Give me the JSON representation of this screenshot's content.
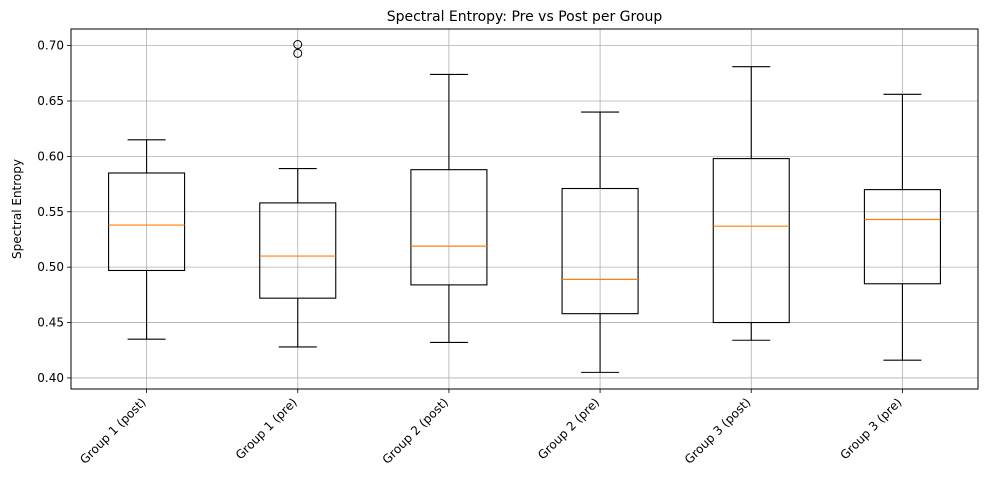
{
  "chart_data": {
    "type": "box",
    "title": "Spectral Entropy: Pre vs Post per Group",
    "xlabel": "",
    "ylabel": "Spectral Entropy",
    "ylim": [
      0.39,
      0.715
    ],
    "yticks": [
      0.4,
      0.45,
      0.5,
      0.55,
      0.6,
      0.65,
      0.7
    ],
    "ytick_labels": [
      "0.40",
      "0.45",
      "0.50",
      "0.55",
      "0.60",
      "0.65",
      "0.70"
    ],
    "grid": true,
    "median_color": "#ff7f0e",
    "box_color": "#000000",
    "categories": [
      "Group 1 (post)",
      "Group 1 (pre)",
      "Group 2 (post)",
      "Group 2 (pre)",
      "Group 3 (post)",
      "Group 3 (pre)"
    ],
    "boxes": [
      {
        "whisker_low": 0.435,
        "q1": 0.497,
        "median": 0.538,
        "q3": 0.585,
        "whisker_high": 0.615,
        "outliers": []
      },
      {
        "whisker_low": 0.428,
        "q1": 0.472,
        "median": 0.51,
        "q3": 0.558,
        "whisker_high": 0.589,
        "outliers": [
          0.693,
          0.701
        ]
      },
      {
        "whisker_low": 0.432,
        "q1": 0.484,
        "median": 0.519,
        "q3": 0.588,
        "whisker_high": 0.674,
        "outliers": []
      },
      {
        "whisker_low": 0.405,
        "q1": 0.458,
        "median": 0.489,
        "q3": 0.571,
        "whisker_high": 0.64,
        "outliers": []
      },
      {
        "whisker_low": 0.434,
        "q1": 0.45,
        "median": 0.537,
        "q3": 0.598,
        "whisker_high": 0.681,
        "outliers": []
      },
      {
        "whisker_low": 0.416,
        "q1": 0.485,
        "median": 0.543,
        "q3": 0.57,
        "whisker_high": 0.656,
        "outliers": []
      }
    ]
  }
}
